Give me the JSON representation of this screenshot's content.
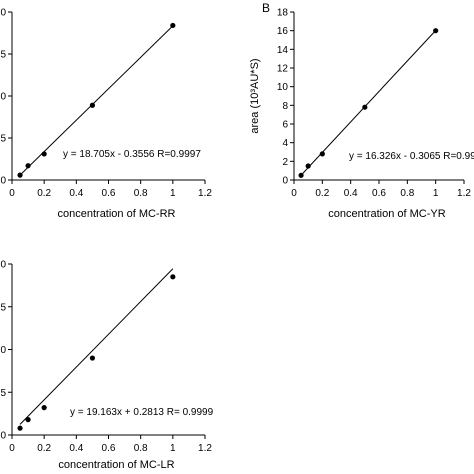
{
  "chart_data": [
    {
      "type": "scatter",
      "panel_label": "",
      "xlabel": "concentration of MC-RR",
      "ylabel": "",
      "xlim": [
        0,
        1.2
      ],
      "ylim": [
        0,
        20
      ],
      "xticks": [
        "0",
        "0.2",
        "0.4",
        "0.6",
        "0.8",
        "1",
        "1.2"
      ],
      "yticks": [
        "0",
        "5",
        "0",
        "5",
        "0"
      ],
      "grid": false,
      "series": [
        {
          "x": [
            0.05,
            0.1,
            0.2,
            0.5,
            1.0
          ],
          "y": [
            0.58,
            1.7,
            3.1,
            8.9,
            18.4
          ]
        }
      ],
      "fit": {
        "slope": 18.705,
        "intercept": -0.3556
      },
      "equation": "y = 18.705x - 0.3556  R=0.9997"
    },
    {
      "type": "scatter",
      "panel_label": "B",
      "xlabel": "concentration of MC-YR",
      "ylabel": "area (10³AU*S)",
      "xlim": [
        0,
        1.2
      ],
      "ylim": [
        0,
        18
      ],
      "xticks": [
        "0",
        "0.2",
        "0.4",
        "0.6",
        "0.8",
        "1",
        "1.2"
      ],
      "yticks": [
        "0",
        "2",
        "4",
        "6",
        "8",
        "10",
        "12",
        "14",
        "16",
        "18"
      ],
      "grid": false,
      "series": [
        {
          "x": [
            0.05,
            0.1,
            0.2,
            0.5,
            1.0
          ],
          "y": [
            0.5,
            1.5,
            2.8,
            7.8,
            16.0
          ]
        }
      ],
      "fit": {
        "slope": 16.326,
        "intercept": -0.3065
      },
      "equation": "y = 16.326x - 0.3065  R=0.99"
    },
    {
      "type": "scatter",
      "panel_label": "",
      "xlabel": "concentration of MC-LR",
      "ylabel": "",
      "xlim": [
        0,
        1.2
      ],
      "ylim": [
        0,
        20
      ],
      "xticks": [
        "0",
        "0.2",
        "0.4",
        "0.6",
        "0.8",
        "1",
        "1.2"
      ],
      "yticks": [
        "0",
        "5",
        "0",
        "5",
        "0"
      ],
      "grid": false,
      "series": [
        {
          "x": [
            0.05,
            0.1,
            0.2,
            0.5,
            1.0
          ],
          "y": [
            0.8,
            1.8,
            3.2,
            9.0,
            18.5
          ]
        }
      ],
      "fit": {
        "slope": 19.163,
        "intercept": 0.2813
      },
      "equation": "y = 19.163x + 0.2813  R= 0.9999"
    }
  ]
}
